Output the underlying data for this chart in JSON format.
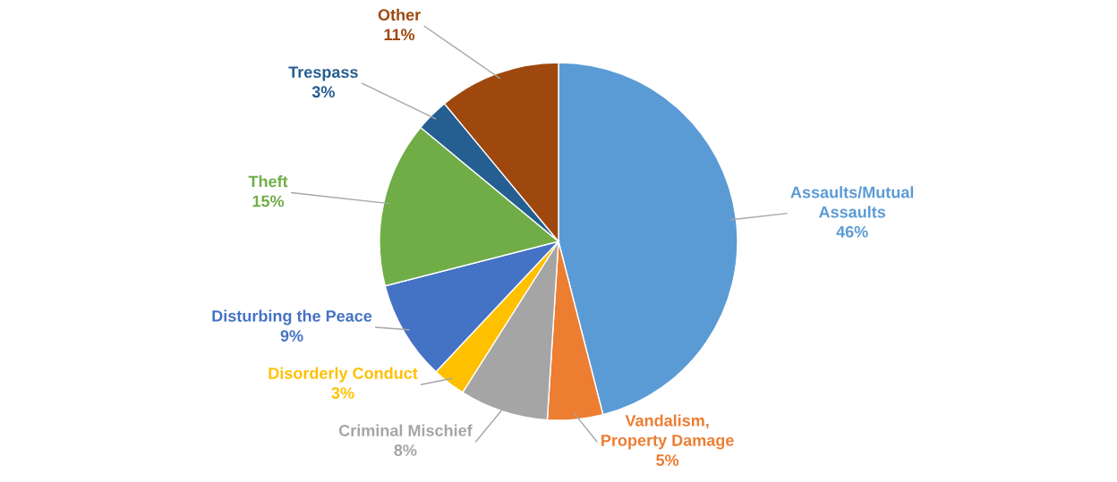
{
  "chart_data": {
    "type": "pie",
    "categories": [
      "Assaults/Mutual Assaults",
      "Vandalism, Property Damage",
      "Criminal Mischief",
      "Disorderly Conduct",
      "Disturbing the Peace",
      "Theft",
      "Trespass",
      "Other"
    ],
    "values": [
      46,
      5,
      8,
      3,
      9,
      15,
      3,
      11
    ],
    "colors": [
      "#5b9bd5",
      "#ed7d31",
      "#a5a5a5",
      "#ffc000",
      "#4472c4",
      "#70ad47",
      "#255e91",
      "#9e480e"
    ],
    "value_labels": [
      "46%",
      "5%",
      "8%",
      "3%",
      "9%",
      "15%",
      "3%",
      "11%"
    ]
  }
}
